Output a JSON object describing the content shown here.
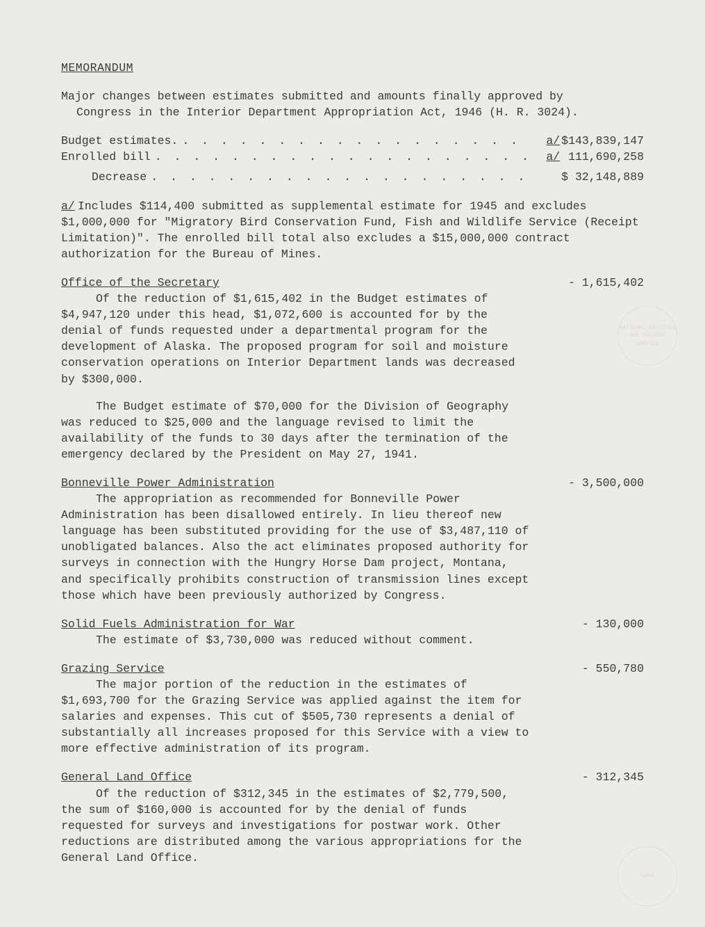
{
  "title": "MEMORANDUM",
  "intro_line1": "Major changes between estimates submitted and amounts finally approved by",
  "intro_line2": "Congress in the Interior Department Appropriation Act, 1946 (H. R. 3024).",
  "summary": {
    "budget_label": "Budget estimates.",
    "budget_fn": "a/",
    "budget_value": "$143,839,147",
    "enrolled_label": "Enrolled bill",
    "enrolled_fn": "a/",
    "enrolled_value": " 111,690,258",
    "decrease_label": "Decrease",
    "decrease_value": "$ 32,148,889"
  },
  "footnote": {
    "mark": "a/",
    "text": "Includes $114,400 submitted as supplemental estimate for 1945 and excludes $1,000,000 for \"Migratory Bird Conservation Fund, Fish and Wildlife Service (Receipt Limitation)\".  The enrolled bill total also excludes a $15,000,000 contract authorization for the Bureau of Mines."
  },
  "sections": [
    {
      "title": "Office of the Secretary",
      "amount": "- 1,615,402",
      "paras": [
        "Of the reduction of $1,615,402 in the Budget estimates of $4,947,120 under this head, $1,072,600 is accounted for by the denial of funds requested under a departmental program for the development of Alaska.  The proposed program for soil and moisture conservation operations on Interior Department lands was decreased by $300,000.",
        "The Budget estimate of $70,000 for the Division of Geography was reduced to $25,000 and the language revised to limit the availability of the funds to 30 days after the termination of the emergency declared by the President on May 27, 1941."
      ]
    },
    {
      "title": "Bonneville Power Administration",
      "amount": "- 3,500,000",
      "paras": [
        "The appropriation as recommended for Bonneville Power Administration has been disallowed entirely.  In lieu thereof new language has been substituted providing for the use of $3,487,110 of unobligated balances.  Also the act eliminates proposed authority for surveys in connection with the Hungry Horse Dam project, Montana, and specifically prohibits construction of transmission lines except those which have been previously authorized by Congress."
      ]
    },
    {
      "title": "Solid Fuels Administration for War",
      "amount": "-   130,000",
      "paras": [
        "The estimate of $3,730,000 was reduced without comment."
      ]
    },
    {
      "title": "Grazing Service",
      "amount": "-   550,780",
      "paras": [
        "The major portion of the reduction in the estimates of $1,693,700 for the Grazing Service was applied against the item for salaries and expenses.  This cut of $505,730 represents a denial of substantially all increases proposed for this Service with a view to more effective administration of its program."
      ]
    },
    {
      "title": "General Land Office",
      "amount": "-   312,345",
      "paras": [
        "Of the reduction of $312,345 in the estimates of $2,779,500, the sum of $160,000 is accounted for by the denial of funds requested for surveys and investigations for postwar work.  Other reductions are distributed among the various appropriations for the General Land Office."
      ]
    }
  ],
  "seal_top": "NATIONAL ARCHIVES AND RECORDS SERVICE",
  "seal_bottom": "NARA"
}
